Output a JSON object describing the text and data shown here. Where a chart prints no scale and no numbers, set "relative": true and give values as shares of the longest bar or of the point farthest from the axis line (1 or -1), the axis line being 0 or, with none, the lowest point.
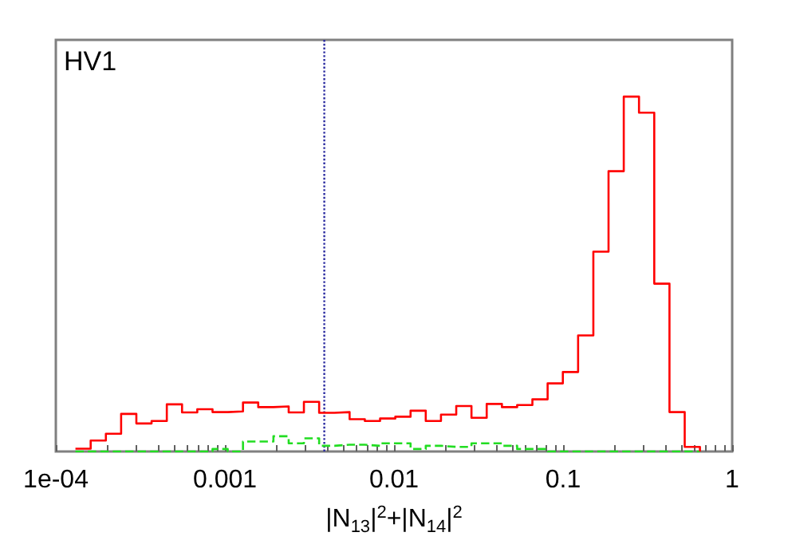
{
  "chart_data": {
    "type": "step",
    "relative": true,
    "tick_labels": "x",
    "annotations": [
      "HV1"
    ],
    "xlabel": "|N$_{13}$|$^{2}$+|N$_{14}$|$^{2}$",
    "log": "x",
    "grid": false,
    "xlim": [
      0.0001,
      1
    ],
    "xticks": [
      {
        "value": 0.0001,
        "label": "1e-04"
      },
      {
        "value": 0.0002,
        "label": null
      },
      {
        "value": 0.0003,
        "label": null
      },
      {
        "value": 0.0004,
        "label": null
      },
      {
        "value": 0.0005,
        "label": null
      },
      {
        "value": 0.0006,
        "label": null
      },
      {
        "value": 0.0007,
        "label": null
      },
      {
        "value": 0.0008,
        "label": null
      },
      {
        "value": 0.0009,
        "label": null
      },
      0.001,
      {
        "value": 0.002,
        "label": null
      },
      {
        "value": 0.003,
        "label": null
      },
      {
        "value": 0.004,
        "label": null
      },
      {
        "value": 0.005,
        "label": null
      },
      {
        "value": 0.006,
        "label": null
      },
      {
        "value": 0.007,
        "label": null
      },
      {
        "value": 0.008,
        "label": null
      },
      {
        "value": 0.009,
        "label": null
      },
      0.01,
      {
        "value": 0.02,
        "label": null
      },
      {
        "value": 0.03,
        "label": null
      },
      {
        "value": 0.04,
        "label": null
      },
      {
        "value": 0.05,
        "label": null
      },
      {
        "value": 0.06,
        "label": null
      },
      {
        "value": 0.07,
        "label": null
      },
      {
        "value": 0.08,
        "label": null
      },
      {
        "value": 0.09,
        "label": null
      },
      0.1,
      {
        "value": 0.2,
        "label": null
      },
      {
        "value": 0.3,
        "label": null
      },
      {
        "value": 0.4,
        "label": null
      },
      {
        "value": 0.5,
        "label": null
      },
      {
        "value": 0.6,
        "label": null
      },
      {
        "value": 0.7,
        "label": null
      },
      {
        "value": 0.8,
        "label": null
      },
      {
        "value": 0.9,
        "label": null
      },
      1
    ],
    "x": [
      0.0001306,
      0.0001607,
      0.0001977,
      0.0002433,
      0.0002994,
      0.0003684,
      0.0004533,
      0.0005578,
      0.0006864,
      0.0008446,
      0.001039,
      0.001279,
      0.001574,
      0.001936,
      0.002383,
      0.002932,
      0.003608,
      0.00444,
      0.005463,
      0.006722,
      0.008272,
      0.01018,
      0.01253,
      0.01541,
      0.01896,
      0.02334,
      0.02872,
      0.03534,
      0.04348,
      0.0535,
      0.06584,
      0.08101,
      0.09969,
      0.1227,
      0.151,
      0.1857,
      0.2285,
      0.2812,
      0.3461,
      0.4258,
      0.524,
      0.6448
    ],
    "series": [
      {
        "color": "#ff0000",
        "line_style": "solid",
        "values": [
          0.008,
          0.031,
          0.05,
          0.106,
          0.079,
          0.086,
          0.133,
          0.11,
          0.119,
          0.111,
          0.113,
          0.138,
          0.125,
          0.127,
          0.11,
          0.14,
          0.109,
          0.111,
          0.091,
          0.086,
          0.093,
          0.098,
          0.115,
          0.086,
          0.104,
          0.128,
          0.095,
          0.134,
          0.125,
          0.131,
          0.147,
          0.192,
          0.224,
          0.327,
          0.563,
          0.79,
          1,
          0.955,
          0.473,
          0.111,
          0.013,
          0
        ]
      },
      {
        "color": "#22dd22",
        "line_style": "dashed",
        "values": [
          0,
          0,
          0,
          0,
          0,
          0,
          0,
          0,
          0,
          0.007,
          0,
          0.028,
          0.028,
          0.043,
          0.023,
          0.037,
          0.016,
          0.019,
          0.019,
          0.016,
          0.023,
          0.023,
          0.007,
          0.016,
          0.013,
          0.013,
          0.023,
          0.023,
          0.016,
          0.007,
          0.007,
          0,
          0,
          0,
          0,
          0,
          0,
          0,
          0,
          0,
          0,
          0
        ]
      }
    ],
    "ref_lines": [
      {
        "axis": "x",
        "value": 0.00387,
        "color": "#2a2aa0",
        "line_style": "dotted"
      }
    ]
  }
}
